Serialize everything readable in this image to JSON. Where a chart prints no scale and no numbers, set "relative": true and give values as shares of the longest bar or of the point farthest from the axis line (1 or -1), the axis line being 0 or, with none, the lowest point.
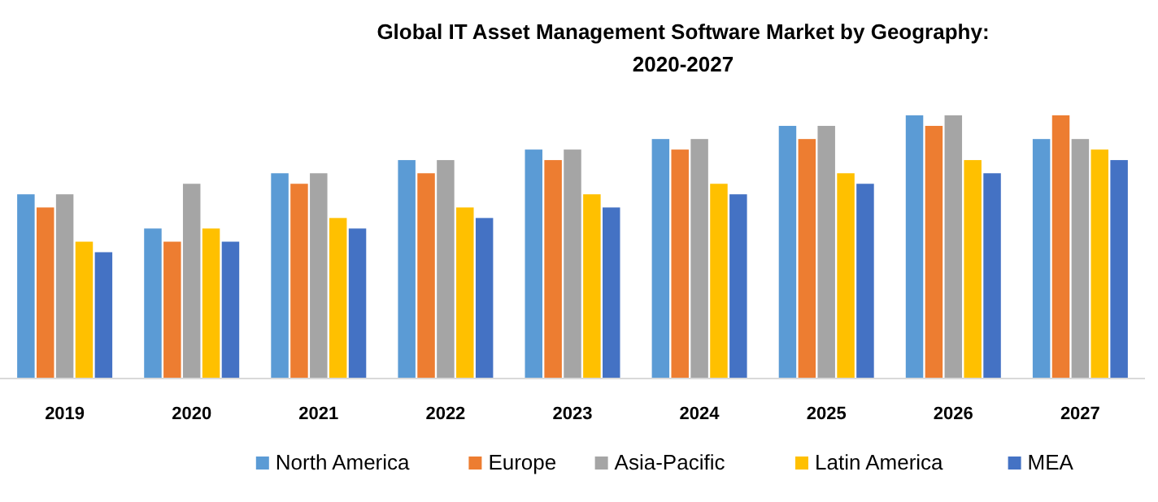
{
  "chart_data": {
    "type": "bar",
    "title": "Global IT Asset Management Software Market by Geography: 2020-2027",
    "relative": true,
    "legend": "bottom",
    "categories": [
      "2019",
      "2020",
      "2021",
      "2022",
      "2023",
      "2024",
      "2025",
      "2026",
      "2027"
    ],
    "series": [
      {
        "name": "North America",
        "color": "#5b9bd5",
        "values": [
          0.7,
          0.57,
          0.78,
          0.83,
          0.87,
          0.91,
          0.96,
          1,
          0.91
        ]
      },
      {
        "name": "Europe",
        "color": "#ed7d31",
        "values": [
          0.65,
          0.52,
          0.74,
          0.78,
          0.83,
          0.87,
          0.91,
          0.96,
          1
        ]
      },
      {
        "name": "Asia-Pacific",
        "color": "#a5a5a5",
        "values": [
          0.7,
          0.74,
          0.78,
          0.83,
          0.87,
          0.91,
          0.96,
          1,
          0.91
        ]
      },
      {
        "name": "Latin America",
        "color": "#ffc000",
        "values": [
          0.52,
          0.57,
          0.61,
          0.65,
          0.7,
          0.74,
          0.78,
          0.83,
          0.87
        ]
      },
      {
        "name": "MEA",
        "color": "#4472c4",
        "values": [
          0.48,
          0.52,
          0.57,
          0.61,
          0.65,
          0.7,
          0.74,
          0.78,
          0.83
        ]
      }
    ]
  }
}
